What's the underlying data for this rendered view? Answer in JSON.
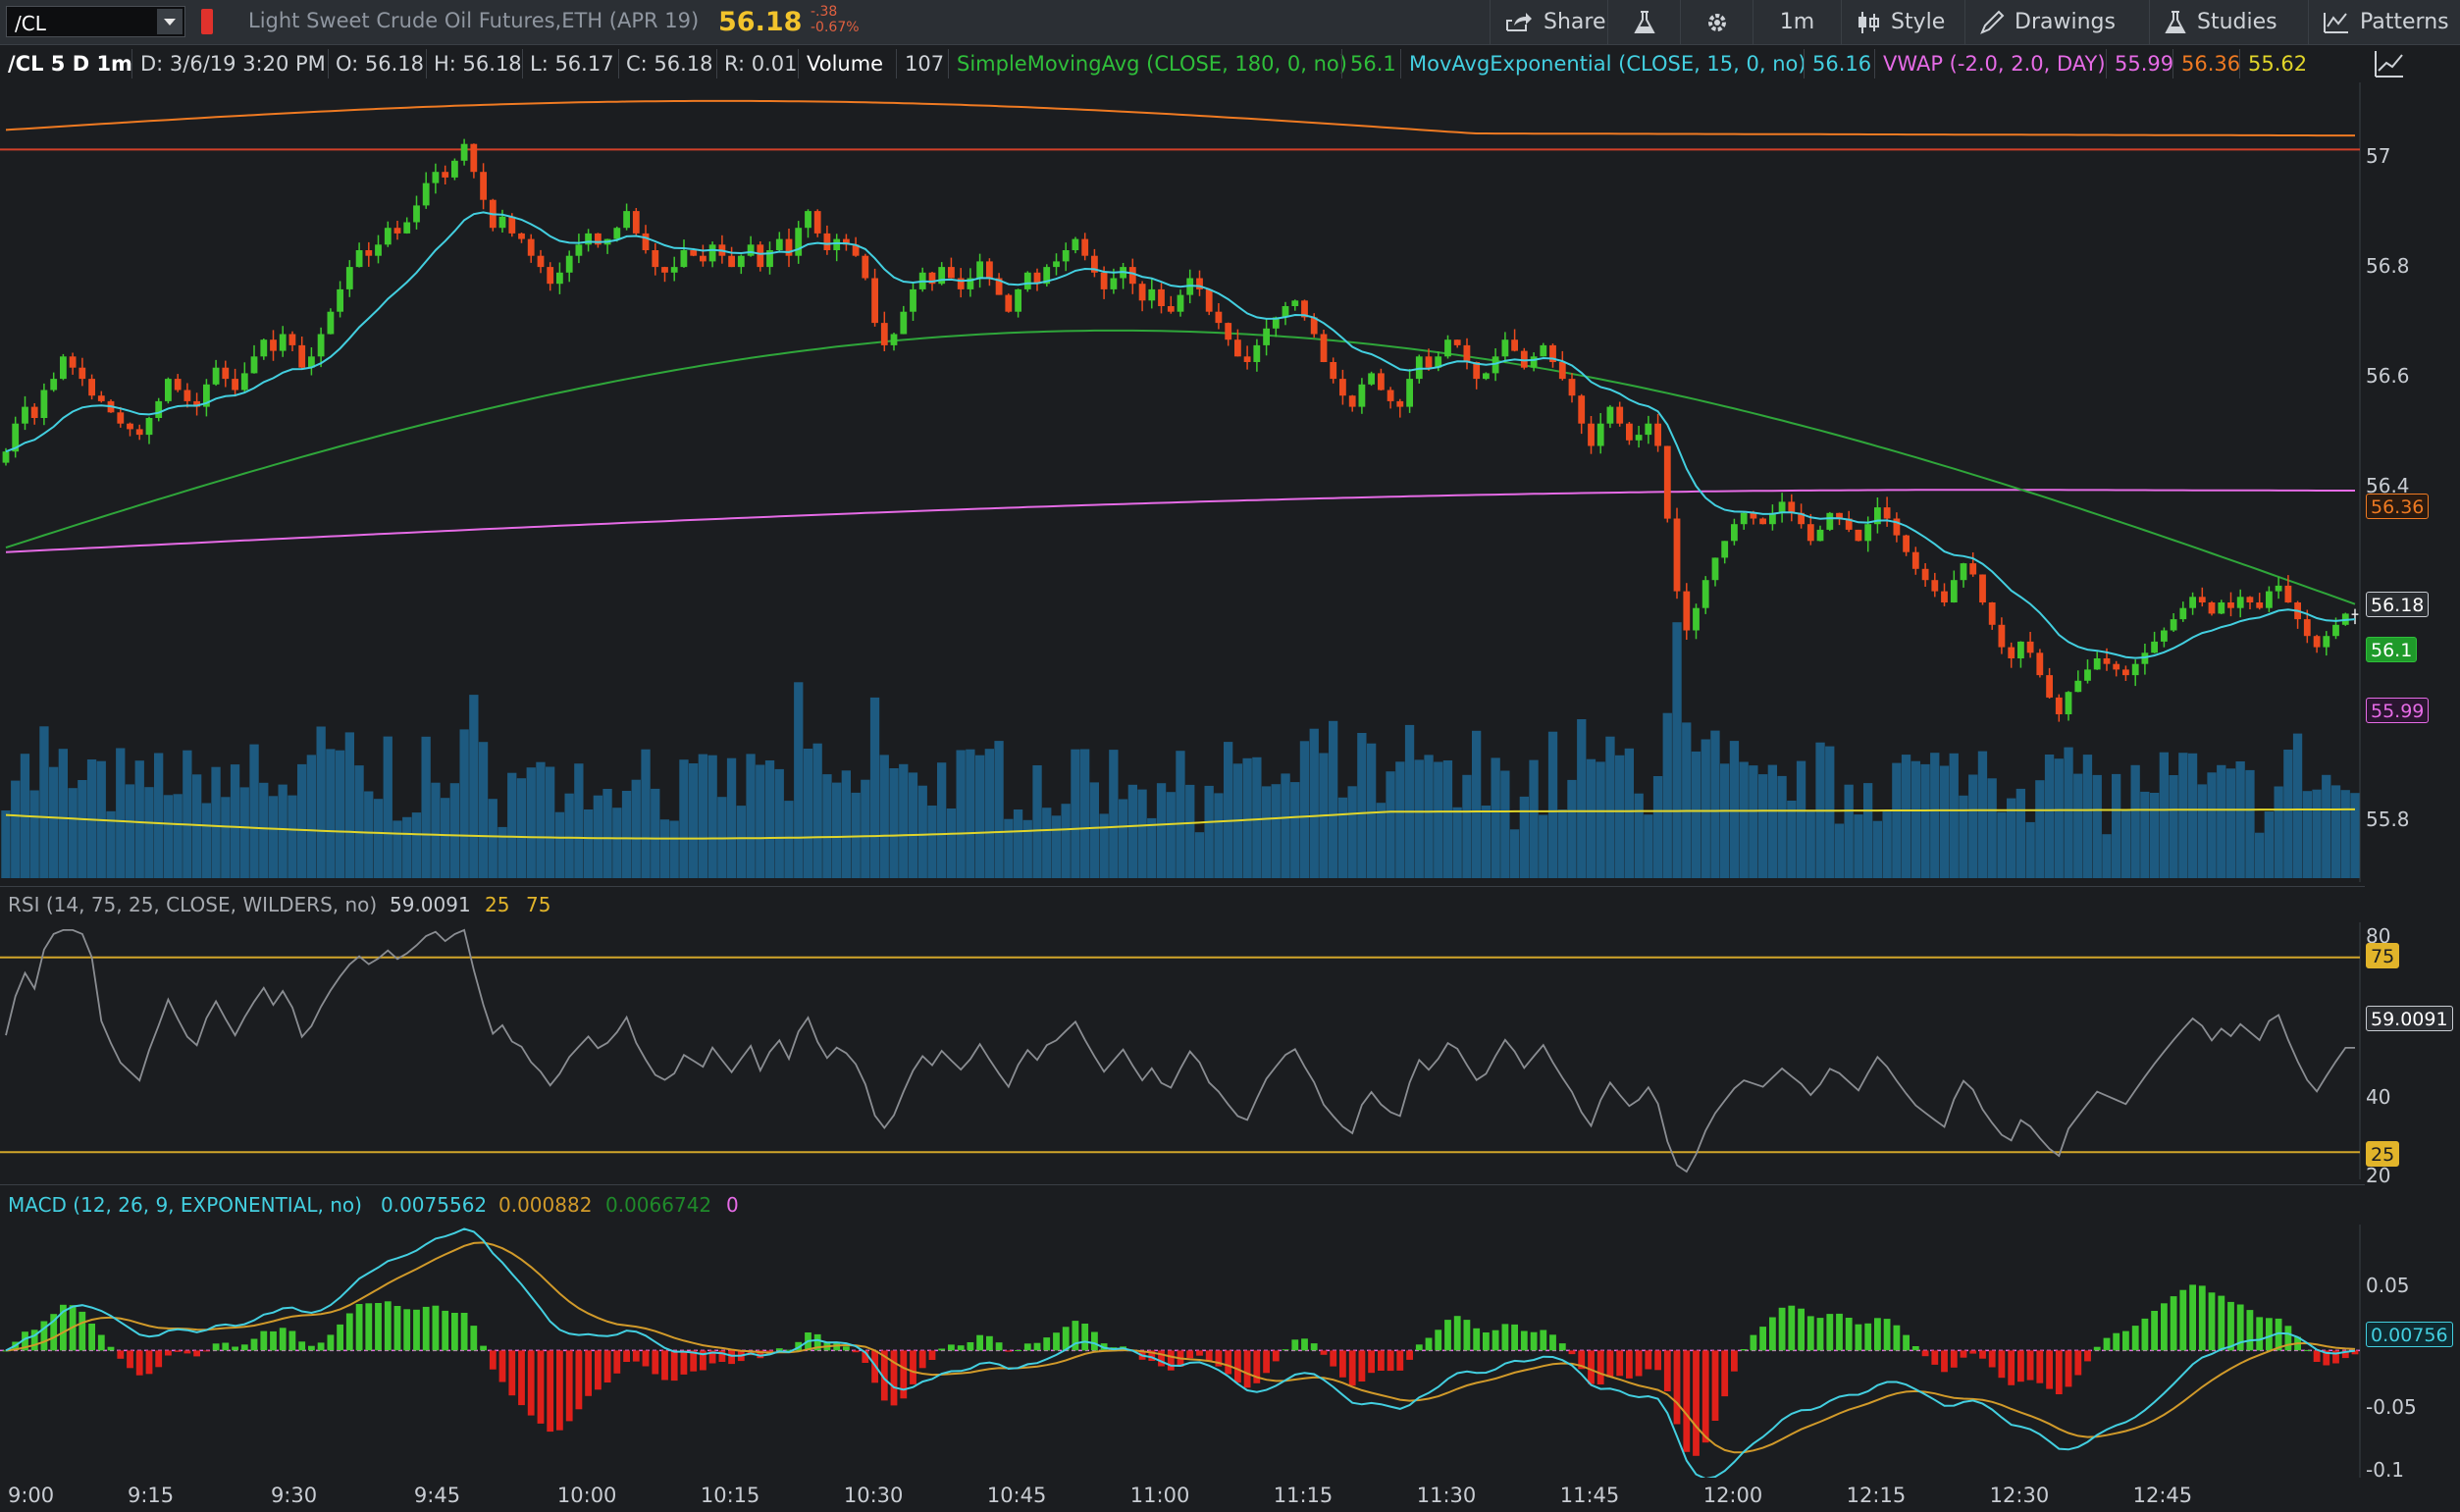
{
  "toolbar": {
    "symbol": "/CL",
    "description": "Light Sweet Crude Oil Futures,ETH (APR 19)",
    "last_price": "56.18",
    "change": "-.38",
    "change_pct": "-0.67%",
    "share_label": "Share",
    "timeframe_label": "1m",
    "style_label": "Style",
    "drawings_label": "Drawings",
    "studies_label": "Studies",
    "patterns_label": "Patterns"
  },
  "info": {
    "name": "/CL 5 D 1m",
    "date": "D: 3/6/19 3:20 PM",
    "open": "O: 56.18",
    "high": "H: 56.18",
    "low": "L: 56.17",
    "close": "C: 56.18",
    "range": "R: 0.01",
    "volume_label": "Volume",
    "volume_value": "107",
    "sma_label": "SimpleMovingAvg (CLOSE, 180, 0, no)",
    "sma_value": "56.1",
    "ema_label": "MovAvgExponential (CLOSE, 15, 0, no)",
    "ema_value": "56.16",
    "vwap_label": "VWAP (-2.0, 2.0, DAY)",
    "vwap_value": "55.99",
    "vwap_upper": "56.36",
    "vwap_lower": "55.62"
  },
  "rsi": {
    "label": "RSI (14, 75, 25, CLOSE, WILDERS, no)",
    "value": "59.0091",
    "oversold": "25",
    "overbought": "75"
  },
  "macd": {
    "label": "MACD (12, 26, 9, EXPONENTIAL, no)",
    "value": "0.0075562",
    "avg": "0.000882",
    "diff": "0.0066742",
    "zero": "0"
  },
  "price_axis": {
    "ticks": [
      "57",
      "56.8",
      "56.6",
      "56.4",
      "55.8"
    ],
    "tag_upper": "56.36",
    "tag_last": "56.18",
    "tag_sma": "56.1",
    "tag_vwap": "55.99"
  },
  "rsi_axis": {
    "ticks": [
      "80",
      "40",
      "20"
    ],
    "tag_75": "75",
    "tag_value": "59.0091",
    "tag_25": "25"
  },
  "macd_axis": {
    "ticks": [
      "0.05",
      "-0.05",
      "-0.1"
    ],
    "tag_value": "0.00756"
  },
  "time_axis": [
    "9:00",
    "9:15",
    "9:30",
    "9:45",
    "10:00",
    "10:15",
    "10:30",
    "10:45",
    "11:00",
    "11:15",
    "11:30",
    "11:45",
    "12:00",
    "12:15",
    "12:30",
    "12:45"
  ],
  "colors": {
    "up": "#3ec82f",
    "down": "#ec4a1e",
    "neutral": "#e8e8e8",
    "ema": "#43cfe0",
    "sma": "#2fa63a",
    "vwap": "#e66be6",
    "vwap_upper": "#ef7a22",
    "vwap_lower": "#e1d52a",
    "volume": "#1d5a80",
    "rsi": "#8a8d92",
    "rsi_ob": "#ef5a28",
    "macd_line": "#43cfe0",
    "macd_avg": "#d19a2a"
  },
  "chart_data": {
    "type": "candlestick",
    "x_start": "9:00",
    "x_step_minutes": 1,
    "ylim": [
      55.7,
      57.13
    ],
    "closes": [
      56.47,
      56.52,
      56.55,
      56.53,
      56.58,
      56.6,
      56.64,
      56.62,
      56.6,
      56.57,
      56.56,
      56.54,
      56.52,
      56.51,
      56.5,
      56.53,
      56.56,
      56.6,
      56.58,
      56.56,
      56.55,
      56.59,
      56.62,
      56.6,
      56.58,
      56.61,
      56.64,
      56.67,
      56.65,
      56.68,
      56.66,
      56.62,
      56.64,
      56.68,
      56.72,
      56.76,
      56.8,
      56.83,
      56.82,
      56.84,
      56.87,
      56.86,
      56.88,
      56.91,
      56.95,
      56.97,
      56.96,
      56.99,
      57.02,
      56.97,
      56.92,
      56.87,
      56.89,
      56.86,
      56.85,
      56.82,
      56.8,
      56.77,
      56.79,
      56.82,
      56.84,
      56.86,
      56.84,
      56.85,
      56.87,
      56.9,
      56.86,
      56.83,
      56.8,
      56.79,
      56.8,
      56.83,
      56.82,
      56.81,
      56.84,
      56.82,
      56.8,
      56.82,
      56.84,
      56.8,
      56.83,
      56.85,
      56.82,
      56.87,
      56.9,
      56.86,
      56.83,
      56.85,
      56.84,
      56.82,
      56.78,
      56.7,
      56.66,
      56.68,
      56.72,
      56.76,
      56.79,
      56.77,
      56.8,
      56.78,
      56.76,
      56.78,
      56.81,
      56.78,
      56.75,
      56.72,
      56.76,
      56.79,
      56.77,
      56.8,
      56.81,
      56.83,
      56.85,
      56.82,
      56.79,
      56.76,
      56.78,
      56.8,
      56.77,
      56.74,
      56.76,
      56.73,
      56.72,
      56.75,
      56.78,
      56.76,
      56.72,
      56.7,
      56.67,
      56.64,
      56.63,
      56.66,
      56.69,
      56.71,
      56.73,
      56.74,
      56.71,
      56.68,
      56.63,
      56.6,
      56.57,
      56.55,
      56.59,
      56.61,
      56.58,
      56.56,
      56.55,
      56.6,
      56.64,
      56.62,
      56.64,
      56.67,
      56.66,
      56.63,
      56.6,
      56.61,
      56.64,
      56.67,
      56.65,
      56.62,
      56.64,
      56.66,
      56.63,
      56.6,
      56.57,
      56.52,
      56.48,
      56.52,
      56.55,
      56.52,
      56.49,
      56.5,
      56.52,
      56.48,
      56.35,
      56.22,
      56.15,
      56.19,
      56.24,
      56.28,
      56.31,
      56.34,
      56.36,
      56.35,
      56.34,
      56.36,
      56.38,
      56.36,
      56.34,
      56.31,
      56.33,
      56.36,
      56.35,
      56.33,
      56.31,
      56.34,
      56.37,
      56.35,
      56.32,
      56.29,
      56.26,
      56.24,
      56.22,
      56.2,
      56.24,
      56.27,
      56.25,
      56.2,
      56.16,
      56.12,
      56.1,
      56.13,
      56.11,
      56.07,
      56.03,
      56.0,
      56.04,
      56.06,
      56.08,
      56.1,
      56.09,
      56.08,
      56.07,
      56.09,
      56.11,
      56.13,
      56.15,
      56.17,
      56.19,
      56.21,
      56.2,
      56.18,
      56.2,
      56.19,
      56.21,
      56.2,
      56.19,
      56.22,
      56.23,
      56.2,
      56.17,
      56.14,
      56.12,
      56.14,
      56.16,
      56.18,
      56.18
    ],
    "volume_ylim": [
      0,
      220
    ],
    "rsi_ylim": [
      18,
      84
    ],
    "macd_ylim": [
      -0.103,
      0.102
    ],
    "macd_rsi_note": ""
  }
}
